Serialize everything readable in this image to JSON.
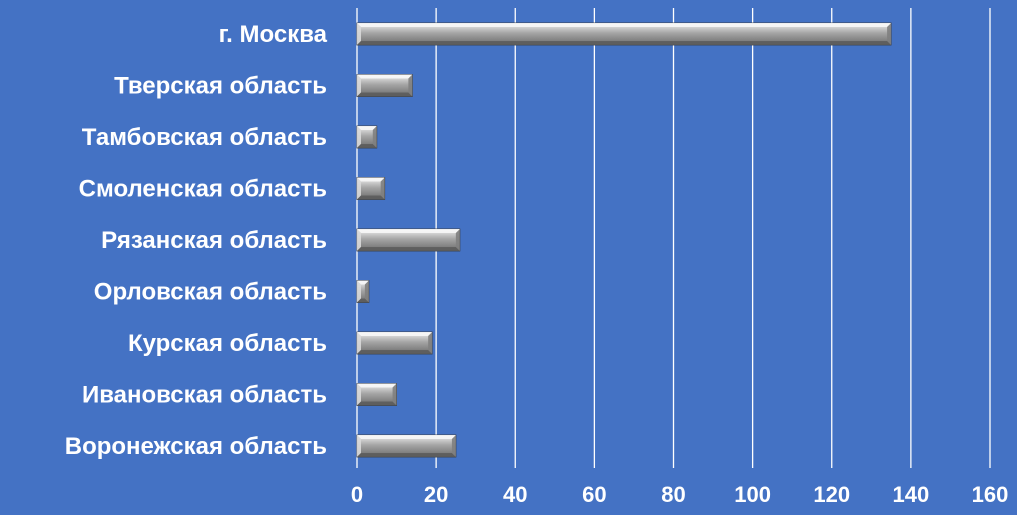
{
  "colors": {
    "background": "#4472c4",
    "bar": "#a6a6a6",
    "grid": "#ffffff",
    "text": "#ffffff"
  },
  "chart_data": {
    "type": "bar",
    "orientation": "horizontal",
    "categories": [
      "г. Москва",
      "Тверская область",
      "Тамбовская область",
      "Смоленская область",
      "Рязанская область",
      "Орловская область",
      "Курская область",
      "Ивановская область",
      "Воронежская область"
    ],
    "values": [
      135,
      14,
      5,
      7,
      26,
      3,
      19,
      10,
      25
    ],
    "xlim": [
      0,
      160
    ],
    "xticks": [
      0,
      20,
      40,
      60,
      80,
      100,
      120,
      140,
      160
    ],
    "grid": "vertical",
    "bar_style": "3d-beveled",
    "title": "",
    "xlabel": "",
    "ylabel": ""
  }
}
